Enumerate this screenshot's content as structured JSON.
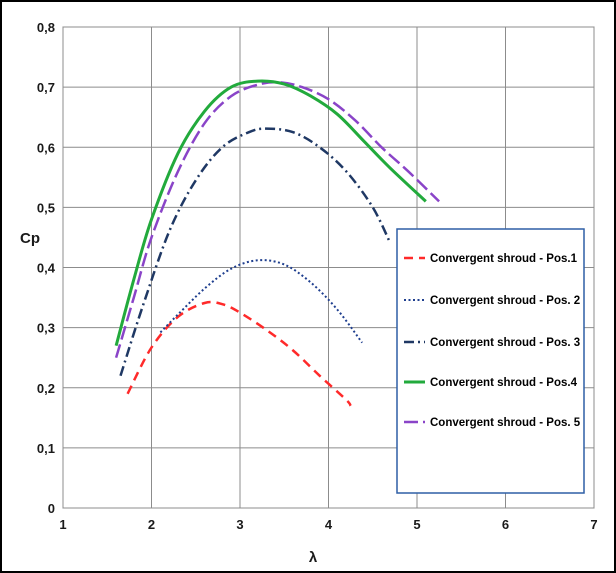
{
  "chart_data": {
    "type": "line",
    "xlabel": "λ",
    "ylabel": "Cp",
    "xlim": [
      1,
      7
    ],
    "ylim": [
      0,
      0.8
    ],
    "x_ticks": [
      "1",
      "2",
      "3",
      "4",
      "5",
      "6",
      "7"
    ],
    "y_ticks": [
      "0",
      "0,1",
      "0,2",
      "0,3",
      "0,4",
      "0,5",
      "0,6",
      "0,7",
      "0,8"
    ],
    "grid": true,
    "legend_position": "right",
    "series": [
      {
        "name": "Convergent shroud - Pos.1",
        "color": "#ff2a2a",
        "style": "dashed",
        "x": [
          1.73,
          2.0,
          2.3,
          2.6,
          2.8,
          3.0,
          3.3,
          3.6,
          3.9,
          4.2,
          4.25
        ],
        "y": [
          0.19,
          0.267,
          0.318,
          0.341,
          0.339,
          0.325,
          0.296,
          0.262,
          0.22,
          0.18,
          0.17
        ]
      },
      {
        "name": "Convergent shroud - Pos. 2",
        "color": "#1f3f8f",
        "style": "dotted",
        "x": [
          2.1,
          2.3,
          2.6,
          2.9,
          3.2,
          3.5,
          3.8,
          4.1,
          4.38
        ],
        "y": [
          0.292,
          0.322,
          0.365,
          0.398,
          0.412,
          0.405,
          0.375,
          0.33,
          0.275
        ]
      },
      {
        "name": "Convergent shroud - Pos. 3",
        "color": "#1f3864",
        "style": "dashdot",
        "x": [
          1.65,
          1.9,
          2.2,
          2.5,
          2.8,
          3.1,
          3.3,
          3.6,
          3.9,
          4.2,
          4.5,
          4.7
        ],
        "y": [
          0.22,
          0.335,
          0.46,
          0.545,
          0.6,
          0.625,
          0.631,
          0.625,
          0.6,
          0.56,
          0.5,
          0.44
        ]
      },
      {
        "name": "Convergent shroud - Pos.4",
        "color": "#22aa3c",
        "style": "solid",
        "x": [
          1.6,
          1.8,
          2.0,
          2.3,
          2.6,
          2.9,
          3.2,
          3.5,
          3.8,
          4.1,
          4.4,
          4.7,
          5.1
        ],
        "y": [
          0.27,
          0.38,
          0.48,
          0.59,
          0.66,
          0.7,
          0.71,
          0.705,
          0.685,
          0.655,
          0.61,
          0.565,
          0.51
        ]
      },
      {
        "name": "Convergent shroud - Pos. 5",
        "color": "#8a44c8",
        "style": "longdash",
        "x": [
          1.6,
          1.8,
          2.0,
          2.3,
          2.6,
          2.9,
          3.2,
          3.45,
          3.7,
          4.0,
          4.3,
          4.6,
          4.9,
          5.25
        ],
        "y": [
          0.25,
          0.35,
          0.45,
          0.56,
          0.64,
          0.685,
          0.704,
          0.708,
          0.7,
          0.68,
          0.645,
          0.6,
          0.56,
          0.51
        ]
      }
    ]
  }
}
